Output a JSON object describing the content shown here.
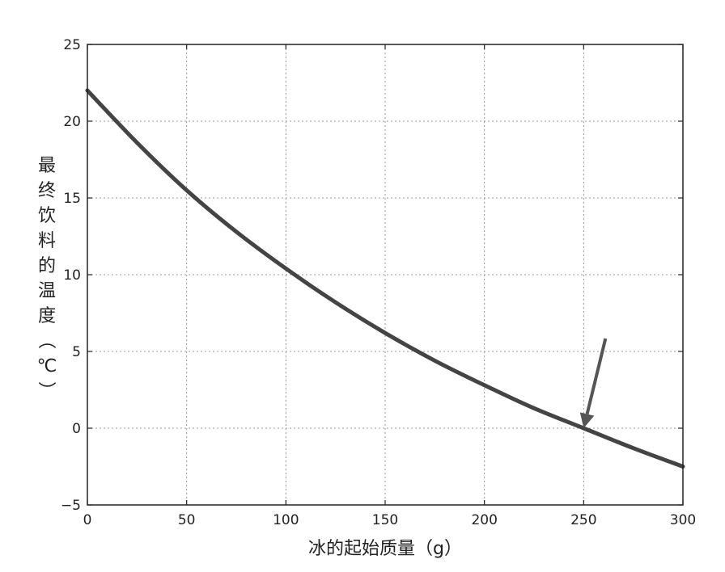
{
  "chart_data": {
    "type": "line",
    "xlabel": "冰的起始质量（g）",
    "ylabel": "最终饮料的温度（℃）",
    "xlim": [
      0,
      300
    ],
    "ylim": [
      -5,
      25
    ],
    "xticks": [
      "0",
      "50",
      "100",
      "150",
      "200",
      "250",
      "300"
    ],
    "yticks": [
      "−5",
      "0",
      "5",
      "10",
      "15",
      "20",
      "25"
    ],
    "grid": true,
    "series": [
      {
        "x": [
          0,
          25,
          50,
          75,
          100,
          125,
          150,
          175,
          200,
          225,
          250,
          275,
          300
        ],
        "y": [
          22.0,
          18.6,
          15.5,
          12.8,
          10.4,
          8.2,
          6.2,
          4.4,
          2.8,
          1.3,
          0.0,
          -1.3,
          -2.5
        ]
      }
    ],
    "annotation": {
      "type": "arrow",
      "points_to": [
        250,
        0
      ]
    }
  }
}
